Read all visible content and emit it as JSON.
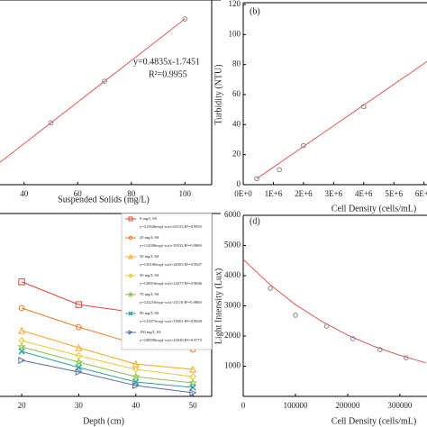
{
  "chart_data": [
    {
      "type": "scatter",
      "xlabel": "Suspended Solids (mg/L)",
      "xlim": [
        31,
        110
      ],
      "ylim": [
        8,
        51
      ],
      "xticks": [
        40,
        60,
        80,
        100
      ],
      "x": [
        50,
        70,
        100
      ],
      "values": [
        22.4,
        32.1,
        46.6
      ],
      "color": "#888888",
      "fit": {
        "x": [
          31,
          100
        ],
        "y": [
          13.2,
          46.6
        ],
        "color": "#e05a5a"
      },
      "annotations": [
        "y=0.4835x-1.7451",
        "R²=0.9955"
      ]
    },
    {
      "type": "scatter",
      "title": "(b)",
      "ylabel": "Turbidity (NTU)",
      "xlabel": "Cell Density (cells/mL)",
      "xlim": [
        0,
        6100000
      ],
      "ylim": [
        0,
        120
      ],
      "yticks": [
        0,
        20,
        40,
        60,
        80,
        100,
        120
      ],
      "xticks": [
        {
          "value": 0,
          "label": "0E+0"
        },
        {
          "value": 1000000,
          "label": "1E+6"
        },
        {
          "value": 2000000,
          "label": "2E+6"
        },
        {
          "value": 3000000,
          "label": "3E+6"
        },
        {
          "value": 4000000,
          "label": "4E+6"
        },
        {
          "value": 5000000,
          "label": "5E+6"
        },
        {
          "value": 6000000,
          "label": "6E+6"
        }
      ],
      "x": [
        450000,
        1200000,
        2000000,
        4000000
      ],
      "values": [
        4,
        10,
        26,
        52
      ],
      "color": "#888888",
      "fit": {
        "x": [
          450000,
          6100000
        ],
        "y": [
          4,
          82
        ],
        "color": "#e05a5a"
      }
    },
    {
      "type": "line",
      "xlabel": "Depth (cm)",
      "xlim": [
        16.2,
        53.3
      ],
      "ylim": [
        0,
        100
      ],
      "xticks": [
        20,
        30,
        40,
        50
      ],
      "x": [
        20,
        30,
        40,
        50
      ],
      "series": [
        {
          "name": "0 mg/L SS",
          "equation": "y=215636exp(-x/a)+65153 R²=0.9955",
          "color": "#e0443c",
          "marker": "square",
          "values": [
            62.6,
            50.2,
            45.8,
            39.4
          ]
        },
        {
          "name": "20 mg/L SS",
          "equation": "y=114396exp(-x/a)+39532 R²=0.9869",
          "color": "#f07a22",
          "marker": "circle",
          "values": [
            48.3,
            37.9,
            28.6,
            25.6
          ]
        },
        {
          "name": "30 mg/L SS",
          "equation": "y=120100exp(-x/a)+26393 R²=0.9947",
          "color": "#f5a623",
          "marker": "triangle",
          "values": [
            36,
            26.6,
            17.7,
            14.8
          ]
        },
        {
          "name": "50 mg/L SS",
          "equation": "y=128016exp(-x/a)+24275 R²=0.9846",
          "color": "#e8c83a",
          "marker": "diamond",
          "values": [
            30.5,
            22.2,
            14.8,
            10.8
          ]
        },
        {
          "name": "70 mg/L SS",
          "equation": "y=122216exp(-x/a)+21118 R²=0.9869",
          "color": "#8cc34a",
          "marker": "star",
          "values": [
            27.1,
            18.7,
            10.8,
            7.4
          ]
        },
        {
          "name": "90 mg/L SS",
          "equation": "y=123975exp(-x/a)+19561 R²=0.9849",
          "color": "#2aa198",
          "marker": "cross",
          "values": [
            24.6,
            15.8,
            7.9,
            4.9
          ]
        },
        {
          "name": "100 mg/L SS",
          "equation": "y=108590exp(-x/a)+43549 R²=0.9775",
          "color": "#5b6fa6",
          "marker": "right",
          "values": [
            19.7,
            13.3,
            5.9,
            2
          ]
        }
      ]
    },
    {
      "type": "scatter",
      "title": "(d)",
      "ylabel": "Light Intensity (Lux)",
      "xlabel": "Cell Density (cells/mL)",
      "xlim": [
        0,
        352000
      ],
      "ylim": [
        0,
        6000
      ],
      "yticks": [
        1000,
        2000,
        3000,
        4000,
        5000,
        6000
      ],
      "xticks": [
        0,
        100000,
        200000,
        300000
      ],
      "x": [
        52000,
        100000,
        160000,
        210000,
        262000,
        312000
      ],
      "values": [
        3580,
        2690,
        2330,
        1910,
        1550,
        1280
      ],
      "color": "#888888",
      "fit": {
        "x": [
          0,
          50000,
          100000,
          150000,
          200000,
          250000,
          300000,
          350000
        ],
        "y": [
          4540,
          3720,
          3040,
          2490,
          2030,
          1660,
          1360,
          1110
        ],
        "color": "#e05a5a"
      }
    }
  ]
}
